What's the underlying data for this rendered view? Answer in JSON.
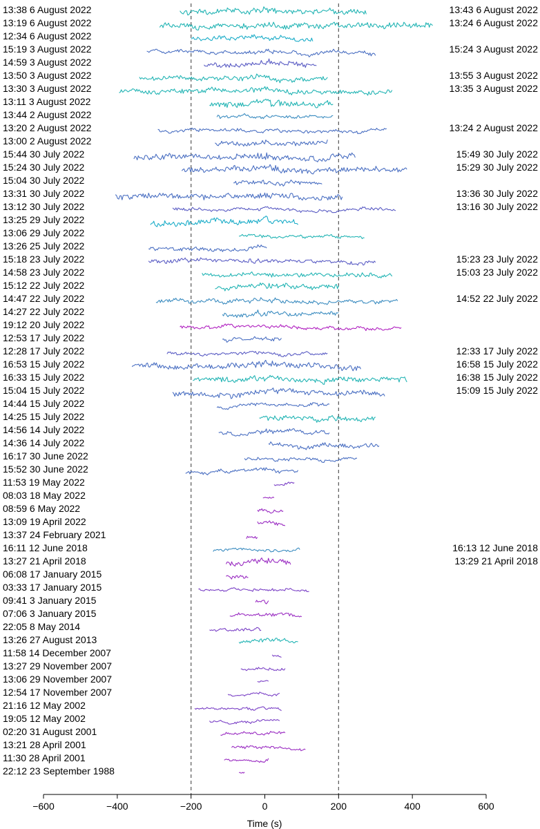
{
  "chart_data": {
    "type": "line",
    "title": "",
    "xlabel": "Time (s)",
    "ylabel": "",
    "xlim": [
      -600,
      600
    ],
    "xticks": [
      "−600",
      "−400",
      "−200",
      "0",
      "200",
      "400",
      "600"
    ],
    "xtick_values": [
      -600,
      -400,
      -200,
      0,
      200,
      400,
      600
    ],
    "reference_lines_x": [
      -200,
      200
    ],
    "grid": false,
    "colors": {
      "teal": "#22b4b4",
      "cyan": "#1aacc8",
      "steel": "#3b8cc0",
      "blue": "#4a6fc2",
      "indigo": "#5a5cc4",
      "violet": "#7a40c6",
      "purple": "#9a2cc2",
      "magenta": "#b020c0"
    },
    "series": [
      {
        "left_label": "13:38 6 August 2022",
        "right_label": "13:43 6 August 2022",
        "x_start": -230,
        "x_end": 275,
        "color": "teal",
        "noise": 0.9
      },
      {
        "left_label": "13:19 6 August 2022",
        "right_label": "13:24 6 August 2022",
        "x_start": -285,
        "x_end": 455,
        "color": "teal",
        "noise": 1.0
      },
      {
        "left_label": "12:34 6 August 2022",
        "right_label": "",
        "x_start": -200,
        "x_end": 130,
        "color": "cyan",
        "noise": 0.7
      },
      {
        "left_label": "15:19 3 August 2022",
        "right_label": "15:24 3 August 2022",
        "x_start": -320,
        "x_end": 300,
        "color": "blue",
        "noise": 0.6
      },
      {
        "left_label": "14:59 3 August 2022",
        "right_label": "",
        "x_start": -165,
        "x_end": 140,
        "color": "indigo",
        "noise": 0.8
      },
      {
        "left_label": "13:50 3 August 2022",
        "right_label": "13:55 3 August 2022",
        "x_start": -340,
        "x_end": 170,
        "color": "teal",
        "noise": 0.7
      },
      {
        "left_label": "13:30 3 August 2022",
        "right_label": "13:35 3 August 2022",
        "x_start": -395,
        "x_end": 345,
        "color": "teal",
        "noise": 0.8
      },
      {
        "left_label": "13:11 3 August 2022",
        "right_label": "",
        "x_start": -150,
        "x_end": 185,
        "color": "teal",
        "noise": 1.0
      },
      {
        "left_label": "13:44 2 August 2022",
        "right_label": "",
        "x_start": -130,
        "x_end": 185,
        "color": "steel",
        "noise": 0.5
      },
      {
        "left_label": "13:20 2 August 2022",
        "right_label": "13:24 2 August 2022",
        "x_start": -290,
        "x_end": 330,
        "color": "blue",
        "noise": 0.5
      },
      {
        "left_label": "13:00 2 August 2022",
        "right_label": "",
        "x_start": -135,
        "x_end": 170,
        "color": "blue",
        "noise": 0.7
      },
      {
        "left_label": "15:44 30 July 2022",
        "right_label": "15:49 30 July 2022",
        "x_start": -355,
        "x_end": 245,
        "color": "blue",
        "noise": 1.0
      },
      {
        "left_label": "15:24 30 July 2022",
        "right_label": "15:29 30 July 2022",
        "x_start": -225,
        "x_end": 385,
        "color": "blue",
        "noise": 0.9
      },
      {
        "left_label": "15:04 30 July 2022",
        "right_label": "",
        "x_start": -85,
        "x_end": 155,
        "color": "blue",
        "noise": 0.6
      },
      {
        "left_label": "13:31 30 July 2022",
        "right_label": "13:36 30 July 2022",
        "x_start": -405,
        "x_end": 210,
        "color": "blue",
        "noise": 1.0
      },
      {
        "left_label": "13:12 30 July 2022",
        "right_label": "13:16 30 July 2022",
        "x_start": -250,
        "x_end": 355,
        "color": "indigo",
        "noise": 0.4
      },
      {
        "left_label": "13:25 29 July 2022",
        "right_label": "",
        "x_start": -310,
        "x_end": 90,
        "color": "cyan",
        "noise": 1.0
      },
      {
        "left_label": "13:06 29 July 2022",
        "right_label": "",
        "x_start": -70,
        "x_end": 270,
        "color": "teal",
        "noise": 0.4
      },
      {
        "left_label": "13:26 25 July 2022",
        "right_label": "",
        "x_start": -315,
        "x_end": 5,
        "color": "blue",
        "noise": 0.6
      },
      {
        "left_label": "15:18 23 July 2022",
        "right_label": "15:23 23 July 2022",
        "x_start": -315,
        "x_end": 300,
        "color": "indigo",
        "noise": 0.6
      },
      {
        "left_label": "14:58 23 July 2022",
        "right_label": "15:03 23 July 2022",
        "x_start": -170,
        "x_end": 345,
        "color": "teal",
        "noise": 0.7
      },
      {
        "left_label": "15:12 22 July 2022",
        "right_label": "",
        "x_start": -135,
        "x_end": 200,
        "color": "teal",
        "noise": 0.8
      },
      {
        "left_label": "14:47 22 July 2022",
        "right_label": "14:52 22 July 2022",
        "x_start": -295,
        "x_end": 360,
        "color": "steel",
        "noise": 0.6
      },
      {
        "left_label": "14:27 22 July 2022",
        "right_label": "",
        "x_start": -115,
        "x_end": 200,
        "color": "steel",
        "noise": 0.7
      },
      {
        "left_label": "19:12 20 July 2022",
        "right_label": "",
        "x_start": -230,
        "x_end": 370,
        "color": "magenta",
        "noise": 0.5
      },
      {
        "left_label": "12:53 17 July 2022",
        "right_label": "",
        "x_start": -115,
        "x_end": 45,
        "color": "blue",
        "noise": 0.5
      },
      {
        "left_label": "12:28 17 July 2022",
        "right_label": "12:33 17 July 2022",
        "x_start": -265,
        "x_end": 170,
        "color": "indigo",
        "noise": 0.4
      },
      {
        "left_label": "16:53 15 July 2022",
        "right_label": "16:58 15 July 2022",
        "x_start": -360,
        "x_end": 260,
        "color": "blue",
        "noise": 1.0
      },
      {
        "left_label": "16:33 15 July 2022",
        "right_label": "16:38 15 July 2022",
        "x_start": -195,
        "x_end": 385,
        "color": "teal",
        "noise": 0.9
      },
      {
        "left_label": "15:04 15 July 2022",
        "right_label": "15:09 15 July 2022",
        "x_start": -250,
        "x_end": 325,
        "color": "blue",
        "noise": 0.9
      },
      {
        "left_label": "14:44 15 July 2022",
        "right_label": "",
        "x_start": -130,
        "x_end": 175,
        "color": "blue",
        "noise": 0.5
      },
      {
        "left_label": "14:25 15 July 2022",
        "right_label": "",
        "x_start": -15,
        "x_end": 300,
        "color": "teal",
        "noise": 0.8
      },
      {
        "left_label": "14:56 14 July 2022",
        "right_label": "",
        "x_start": -125,
        "x_end": 175,
        "color": "blue",
        "noise": 0.6
      },
      {
        "left_label": "14:36 14 July 2022",
        "right_label": "",
        "x_start": 10,
        "x_end": 310,
        "color": "blue",
        "noise": 0.7
      },
      {
        "left_label": "16:17 30 June 2022",
        "right_label": "",
        "x_start": -55,
        "x_end": 250,
        "color": "blue",
        "noise": 0.5
      },
      {
        "left_label": "15:52 30 June 2022",
        "right_label": "",
        "x_start": -215,
        "x_end": 90,
        "color": "blue",
        "noise": 0.5
      },
      {
        "left_label": "11:53 19 May 2022",
        "right_label": "",
        "x_start": 25,
        "x_end": 80,
        "color": "violet",
        "noise": 0.4
      },
      {
        "left_label": "08:03 18 May 2022",
        "right_label": "",
        "x_start": -5,
        "x_end": 25,
        "color": "purple",
        "noise": 0.3
      },
      {
        "left_label": "08:59 6 May 2022",
        "right_label": "",
        "x_start": -20,
        "x_end": 50,
        "color": "purple",
        "noise": 0.4
      },
      {
        "left_label": "13:09 19 April 2022",
        "right_label": "",
        "x_start": -20,
        "x_end": 55,
        "color": "purple",
        "noise": 0.6
      },
      {
        "left_label": "13:37 24 February 2021",
        "right_label": "",
        "x_start": -50,
        "x_end": -20,
        "color": "purple",
        "noise": 0.6
      },
      {
        "left_label": "16:11 12 June 2018",
        "right_label": "16:13 12 June 2018",
        "x_start": -140,
        "x_end": 95,
        "color": "steel",
        "noise": 0.4
      },
      {
        "left_label": "13:27 21 April 2018",
        "right_label": "13:29 21 April 2018",
        "x_start": -105,
        "x_end": 70,
        "color": "purple",
        "noise": 0.9
      },
      {
        "left_label": "06:08 17 January 2015",
        "right_label": "",
        "x_start": -105,
        "x_end": -45,
        "color": "purple",
        "noise": 0.6
      },
      {
        "left_label": "03:33 17 January 2015",
        "right_label": "",
        "x_start": -180,
        "x_end": 120,
        "color": "violet",
        "noise": 0.3
      },
      {
        "left_label": "09:41 3 January 2015",
        "right_label": "",
        "x_start": -25,
        "x_end": 10,
        "color": "purple",
        "noise": 0.5
      },
      {
        "left_label": "07:06 3 January 2015",
        "right_label": "",
        "x_start": -95,
        "x_end": 100,
        "color": "purple",
        "noise": 0.5
      },
      {
        "left_label": "22:05 8 May 2014",
        "right_label": "",
        "x_start": -150,
        "x_end": -10,
        "color": "violet",
        "noise": 0.4
      },
      {
        "left_label": "13:26 27 August 2013",
        "right_label": "",
        "x_start": -70,
        "x_end": 90,
        "color": "teal",
        "noise": 0.5
      },
      {
        "left_label": "11:58 14 December 2007",
        "right_label": "",
        "x_start": 20,
        "x_end": 45,
        "color": "violet",
        "noise": 0.2
      },
      {
        "left_label": "13:27 29 November 2007",
        "right_label": "",
        "x_start": -65,
        "x_end": 55,
        "color": "violet",
        "noise": 0.3
      },
      {
        "left_label": "13:06 29 November 2007",
        "right_label": "",
        "x_start": -20,
        "x_end": 10,
        "color": "violet",
        "noise": 0.2
      },
      {
        "left_label": "12:54 17 November 2007",
        "right_label": "",
        "x_start": -100,
        "x_end": 40,
        "color": "violet",
        "noise": 0.3
      },
      {
        "left_label": "21:16 12 May 2002",
        "right_label": "",
        "x_start": -190,
        "x_end": 45,
        "color": "violet",
        "noise": 0.3
      },
      {
        "left_label": "19:05 12 May 2002",
        "right_label": "",
        "x_start": -150,
        "x_end": 40,
        "color": "violet",
        "noise": 0.3
      },
      {
        "left_label": "02:20 31 August 2001",
        "right_label": "",
        "x_start": -120,
        "x_end": 55,
        "color": "purple",
        "noise": 0.4
      },
      {
        "left_label": "13:21 28 April 2001",
        "right_label": "",
        "x_start": -90,
        "x_end": 110,
        "color": "purple",
        "noise": 0.4
      },
      {
        "left_label": "11:30 28 April 2001",
        "right_label": "",
        "x_start": -110,
        "x_end": 10,
        "color": "purple",
        "noise": 0.3
      },
      {
        "left_label": "22:12 23 September 1988",
        "right_label": "",
        "x_start": -70,
        "x_end": -55,
        "color": "purple",
        "noise": 0.2
      }
    ]
  }
}
